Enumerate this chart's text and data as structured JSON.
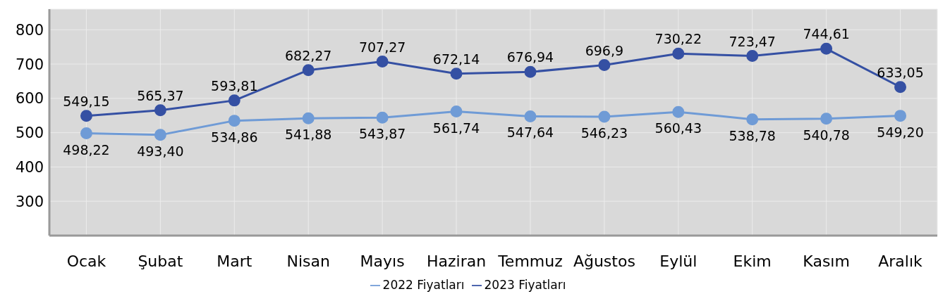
{
  "chart_data": {
    "type": "line",
    "categories": [
      "Ocak",
      "Şubat",
      "Mart",
      "Nisan",
      "Mayıs",
      "Haziran",
      "Temmuz",
      "Ağustos",
      "Eylül",
      "Ekim",
      "Kasım",
      "Aralık"
    ],
    "series": [
      {
        "name": "2022 Fiyatları",
        "color": "#6f9bd6",
        "values": [
          498.22,
          493.4,
          534.86,
          541.88,
          543.87,
          561.74,
          547.64,
          546.23,
          560.43,
          538.78,
          540.78,
          549.2
        ],
        "value_labels": [
          "498,22",
          "493,40",
          "534,86",
          "541,88",
          "543,87",
          "561,74",
          "547,64",
          "546,23",
          "560,43",
          "538,78",
          "540,78",
          "549,20"
        ]
      },
      {
        "name": "2023 Fiyatları",
        "color": "#3550a3",
        "values": [
          549.15,
          565.37,
          593.81,
          682.27,
          707.27,
          672.14,
          676.94,
          696.9,
          730.22,
          723.47,
          744.61,
          633.05
        ],
        "value_labels": [
          "549,15",
          "565,37",
          "593,81",
          "682,27",
          "707,27",
          "672,14",
          "676,94",
          "696,9",
          "730,22",
          "723,47",
          "744,61",
          "633,05"
        ]
      }
    ],
    "ylim": [
      200,
      860
    ],
    "yticks": [
      300,
      400,
      500,
      600,
      700,
      800
    ],
    "grid": true,
    "legend": "bottom",
    "marker": "circle",
    "line_style": "solid"
  }
}
